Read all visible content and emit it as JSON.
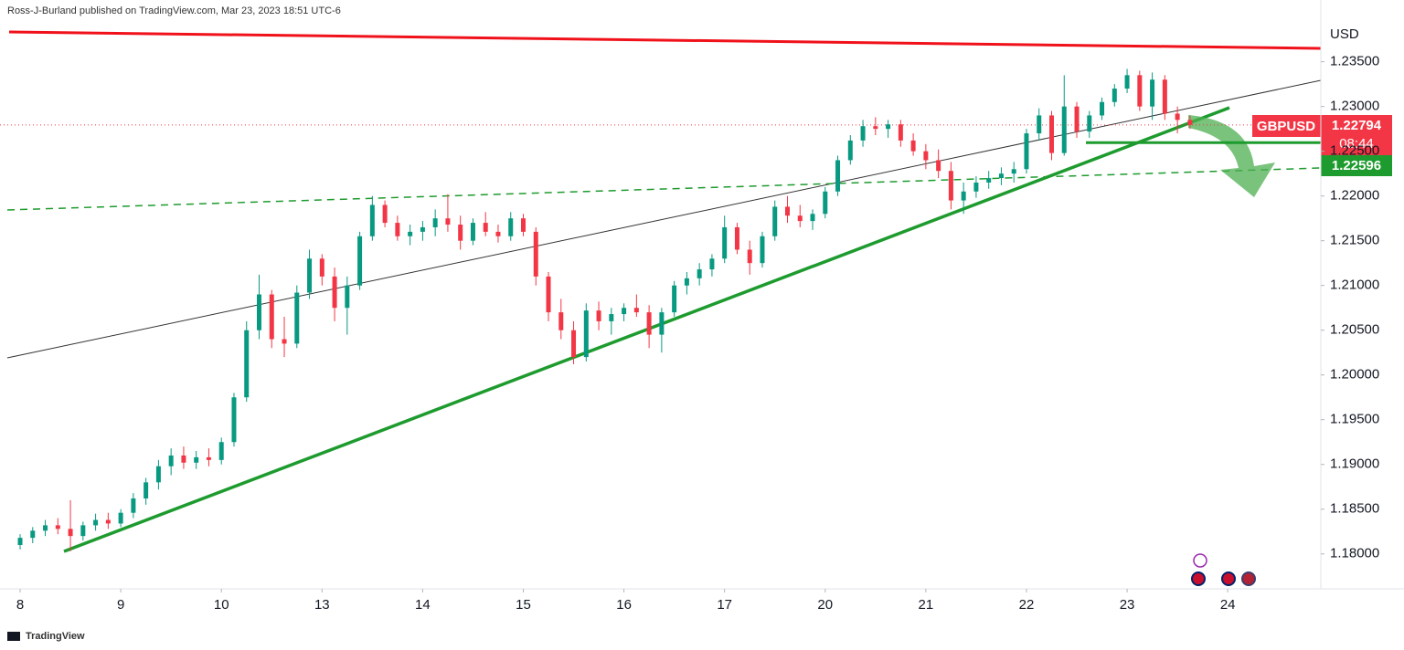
{
  "header": {
    "publisher": "Ross-J-Burland published on TradingView.com, Mar 23, 2023 18:51 UTC-6"
  },
  "footer": {
    "brand": "TradingView"
  },
  "chart_data": {
    "type": "candlestick",
    "symbol": "GBPUSD",
    "currency": "USD",
    "countdown": "08:44",
    "last_price": 1.22794,
    "level_price": 1.22596,
    "up_color": "#089981",
    "down_color": "#f23645",
    "grid": false,
    "ylim": [
      1.1761,
      1.2419
    ],
    "yticks": [
      {
        "value": 1.18,
        "label": "1.18000"
      },
      {
        "value": 1.185,
        "label": "1.18500"
      },
      {
        "value": 1.19,
        "label": "1.19000"
      },
      {
        "value": 1.195,
        "label": "1.19500"
      },
      {
        "value": 1.2,
        "label": "1.20000"
      },
      {
        "value": 1.205,
        "label": "1.20500"
      },
      {
        "value": 1.21,
        "label": "1.21000"
      },
      {
        "value": 1.215,
        "label": "1.21500"
      },
      {
        "value": 1.22,
        "label": "1.22000"
      },
      {
        "value": 1.225,
        "label": "1.22500"
      },
      {
        "value": 1.23,
        "label": "1.23000"
      },
      {
        "value": 1.235,
        "label": "1.23500"
      }
    ],
    "xlim": [
      -1.6,
      103.4
    ],
    "xticks": [
      {
        "value": 0,
        "label": "8"
      },
      {
        "value": 8,
        "label": "9"
      },
      {
        "value": 16,
        "label": "10"
      },
      {
        "value": 24,
        "label": "13"
      },
      {
        "value": 32,
        "label": "14"
      },
      {
        "value": 40,
        "label": "15"
      },
      {
        "value": 48,
        "label": "16"
      },
      {
        "value": 56,
        "label": "17"
      },
      {
        "value": 64,
        "label": "20"
      },
      {
        "value": 72,
        "label": "21"
      },
      {
        "value": 80,
        "label": "22"
      },
      {
        "value": 88,
        "label": "23"
      },
      {
        "value": 96,
        "label": "24"
      }
    ],
    "ohlc": [
      [
        1.181,
        1.1822,
        1.1805,
        1.1818
      ],
      [
        1.1818,
        1.183,
        1.1812,
        1.1826
      ],
      [
        1.1826,
        1.1838,
        1.182,
        1.1832
      ],
      [
        1.1832,
        1.184,
        1.1822,
        1.1828
      ],
      [
        1.1828,
        1.186,
        1.1803,
        1.182
      ],
      [
        1.182,
        1.1836,
        1.1815,
        1.1832
      ],
      [
        1.1832,
        1.1845,
        1.1826,
        1.1838
      ],
      [
        1.1838,
        1.1846,
        1.1828,
        1.1834
      ],
      [
        1.1834,
        1.185,
        1.183,
        1.1846
      ],
      [
        1.1846,
        1.1868,
        1.184,
        1.1862
      ],
      [
        1.1862,
        1.1885,
        1.1855,
        1.188
      ],
      [
        1.188,
        1.1905,
        1.1872,
        1.1898
      ],
      [
        1.1898,
        1.1918,
        1.1888,
        1.191
      ],
      [
        1.191,
        1.192,
        1.1895,
        1.1902
      ],
      [
        1.1902,
        1.1915,
        1.1895,
        1.1908
      ],
      [
        1.1908,
        1.1918,
        1.1898,
        1.1905
      ],
      [
        1.1905,
        1.193,
        1.19,
        1.1925
      ],
      [
        1.1925,
        1.198,
        1.192,
        1.1975
      ],
      [
        1.1975,
        1.206,
        1.197,
        1.205
      ],
      [
        1.205,
        1.2112,
        1.204,
        1.209
      ],
      [
        1.209,
        1.2095,
        1.203,
        1.204
      ],
      [
        1.204,
        1.2065,
        1.202,
        1.2035
      ],
      [
        1.2035,
        1.21,
        1.203,
        1.2092
      ],
      [
        1.2092,
        1.214,
        1.2085,
        1.213
      ],
      [
        1.213,
        1.2135,
        1.21,
        1.211
      ],
      [
        1.211,
        1.212,
        1.206,
        1.2075
      ],
      [
        1.2075,
        1.211,
        1.2045,
        1.21
      ],
      [
        1.21,
        1.216,
        1.2095,
        1.2155
      ],
      [
        1.2155,
        1.22,
        1.215,
        1.219
      ],
      [
        1.219,
        1.2195,
        1.2165,
        1.217
      ],
      [
        1.217,
        1.2178,
        1.215,
        1.2155
      ],
      [
        1.2155,
        1.2168,
        1.2145,
        1.216
      ],
      [
        1.216,
        1.2172,
        1.215,
        1.2165
      ],
      [
        1.2165,
        1.2185,
        1.2155,
        1.2175
      ],
      [
        1.2175,
        1.2202,
        1.216,
        1.2168
      ],
      [
        1.2168,
        1.2178,
        1.214,
        1.215
      ],
      [
        1.215,
        1.2175,
        1.2145,
        1.217
      ],
      [
        1.217,
        1.2182,
        1.2155,
        1.216
      ],
      [
        1.216,
        1.2168,
        1.2148,
        1.2155
      ],
      [
        1.2155,
        1.2182,
        1.215,
        1.2175
      ],
      [
        1.2175,
        1.218,
        1.2155,
        1.216
      ],
      [
        1.216,
        1.2165,
        1.21,
        1.211
      ],
      [
        1.211,
        1.2115,
        1.206,
        1.207
      ],
      [
        1.207,
        1.2085,
        1.204,
        1.205
      ],
      [
        1.205,
        1.206,
        1.2012,
        1.202
      ],
      [
        1.202,
        1.208,
        1.2015,
        1.2072
      ],
      [
        1.2072,
        1.2082,
        1.205,
        1.206
      ],
      [
        1.206,
        1.2075,
        1.2045,
        1.2068
      ],
      [
        1.2068,
        1.208,
        1.206,
        1.2075
      ],
      [
        1.2075,
        1.209,
        1.2065,
        1.207
      ],
      [
        1.207,
        1.2078,
        1.203,
        1.2045
      ],
      [
        1.2045,
        1.2075,
        1.2025,
        1.207
      ],
      [
        1.207,
        1.2105,
        1.2065,
        1.21
      ],
      [
        1.21,
        1.2115,
        1.209,
        1.2108
      ],
      [
        1.2108,
        1.2125,
        1.21,
        1.2118
      ],
      [
        1.2118,
        1.2135,
        1.211,
        1.213
      ],
      [
        1.213,
        1.2178,
        1.2125,
        1.2165
      ],
      [
        1.2165,
        1.217,
        1.2135,
        1.214
      ],
      [
        1.214,
        1.215,
        1.2112,
        1.2125
      ],
      [
        1.2125,
        1.216,
        1.212,
        1.2155
      ],
      [
        1.2155,
        1.2195,
        1.215,
        1.2188
      ],
      [
        1.2188,
        1.22,
        1.217,
        1.2178
      ],
      [
        1.2178,
        1.219,
        1.2165,
        1.2172
      ],
      [
        1.2172,
        1.2185,
        1.2162,
        1.218
      ],
      [
        1.218,
        1.221,
        1.2175,
        1.2205
      ],
      [
        1.2205,
        1.2245,
        1.22,
        1.224
      ],
      [
        1.224,
        1.2268,
        1.2235,
        1.2262
      ],
      [
        1.2262,
        1.2285,
        1.2255,
        1.2278
      ],
      [
        1.2278,
        1.2288,
        1.2268,
        1.2275
      ],
      [
        1.2275,
        1.2285,
        1.2265,
        1.228
      ],
      [
        1.228,
        1.2285,
        1.2255,
        1.2262
      ],
      [
        1.2262,
        1.227,
        1.2245,
        1.225
      ],
      [
        1.225,
        1.2258,
        1.223,
        1.224
      ],
      [
        1.224,
        1.2252,
        1.222,
        1.2228
      ],
      [
        1.2228,
        1.2238,
        1.2185,
        1.2195
      ],
      [
        1.2195,
        1.2215,
        1.218,
        1.2205
      ],
      [
        1.2205,
        1.2222,
        1.2198,
        1.2215
      ],
      [
        1.2215,
        1.2228,
        1.2208,
        1.222
      ],
      [
        1.222,
        1.2232,
        1.2212,
        1.2225
      ],
      [
        1.2225,
        1.2238,
        1.2215,
        1.223
      ],
      [
        1.223,
        1.2275,
        1.2225,
        1.227
      ],
      [
        1.227,
        1.2298,
        1.2262,
        1.229
      ],
      [
        1.229,
        1.2295,
        1.224,
        1.2248
      ],
      [
        1.2248,
        1.2335,
        1.2245,
        1.23
      ],
      [
        1.23,
        1.2305,
        1.2265,
        1.2272
      ],
      [
        1.2272,
        1.2295,
        1.2265,
        1.229
      ],
      [
        1.229,
        1.231,
        1.2285,
        1.2305
      ],
      [
        1.2305,
        1.2325,
        1.23,
        1.232
      ],
      [
        1.232,
        1.2342,
        1.2315,
        1.2335
      ],
      [
        1.2335,
        1.234,
        1.2295,
        1.23
      ],
      [
        1.23,
        1.2338,
        1.2285,
        1.233
      ],
      [
        1.233,
        1.2335,
        1.2285,
        1.2292
      ],
      [
        1.2292,
        1.23,
        1.227,
        1.2285
      ],
      [
        1.2285,
        1.229,
        1.2275,
        1.22794
      ]
    ]
  }
}
